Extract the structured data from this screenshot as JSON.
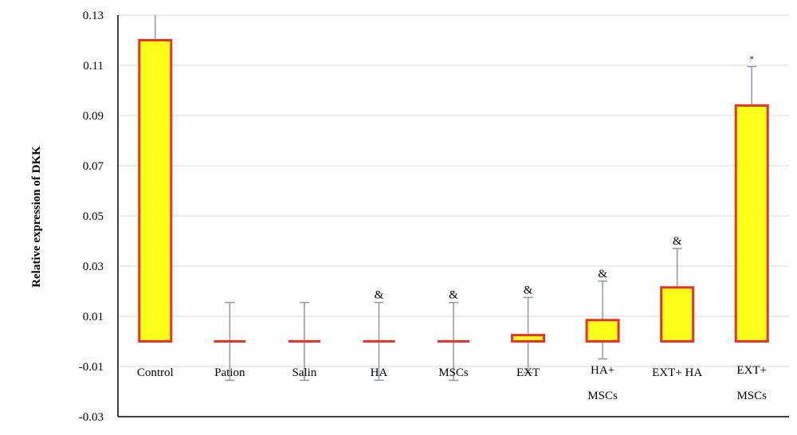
{
  "chart_data": {
    "type": "bar",
    "ylabel": "Relative expression of DKK",
    "ylim": [
      -0.03,
      0.13
    ],
    "yticks": [
      "0.13",
      "0.11",
      "0.09",
      "0.07",
      "0.05",
      "0.03",
      "0.01",
      "-0.01",
      "-0.03"
    ],
    "ytick_values": [
      0.13,
      0.11,
      0.09,
      0.07,
      0.05,
      0.03,
      0.01,
      -0.01,
      -0.03
    ],
    "grid": true,
    "categories": [
      [
        "Control"
      ],
      [
        "Pation"
      ],
      [
        "Salin"
      ],
      [
        "HA"
      ],
      [
        "MSCs"
      ],
      [
        "EXT"
      ],
      [
        "HA+",
        "MSCs"
      ],
      [
        "EXT+ HA"
      ],
      [
        "EXT+",
        "MSCs"
      ]
    ],
    "values": [
      0.12,
      0.0,
      0.0,
      0.0,
      0.0,
      0.0025,
      0.0085,
      0.0215,
      0.094
    ],
    "error": [
      0.0155,
      0.0155,
      0.0155,
      0.0155,
      0.0155,
      0.015,
      0.0155,
      0.0155,
      0.0155
    ],
    "annotations": [
      "",
      "",
      "",
      "&",
      "&",
      "&",
      "&",
      "&",
      "*"
    ],
    "colors": {
      "bar_fill": "#ffff1a",
      "bar_stroke": "#e8322a",
      "error_bar": "#8c9aa3",
      "grid": "#d9d9d9"
    }
  }
}
